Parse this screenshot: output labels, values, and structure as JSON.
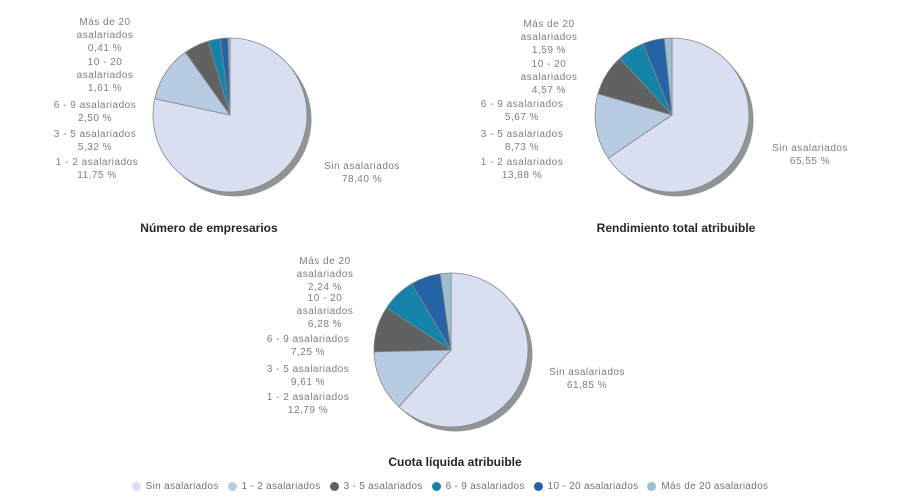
{
  "legend": {
    "items": [
      {
        "label": "Sin asalariados",
        "color": "#d9dff0"
      },
      {
        "label": "1 - 2 asalariados",
        "color": "#b7cbe2"
      },
      {
        "label": "3 - 5 asalariados",
        "color": "#5f6163"
      },
      {
        "label": "6 - 9 asalariados",
        "color": "#1483a8"
      },
      {
        "label": "10 - 20 asalariados",
        "color": "#2663a6"
      },
      {
        "label": "Más de 20 asalariados",
        "color": "#9cc0d2"
      }
    ]
  },
  "chart_data": [
    {
      "type": "pie",
      "title": "Número de empresarios",
      "unit": "%",
      "start_angle_deg": 0,
      "direction": "clockwise",
      "categories": [
        "Sin asalariados",
        "1 - 2 asalariados",
        "3 - 5 asalariados",
        "6 - 9 asalariados",
        "10 - 20 asalariados",
        "Más de 20 asalariados"
      ],
      "values": [
        78.4,
        11.75,
        5.32,
        2.5,
        1.61,
        0.41
      ],
      "legend_position": "bottom-shared"
    },
    {
      "type": "pie",
      "title": "Rendimiento total atribuible",
      "unit": "%",
      "start_angle_deg": 0,
      "direction": "clockwise",
      "categories": [
        "Sin asalariados",
        "1 - 2 asalariados",
        "3 - 5 asalariados",
        "6 - 9 asalariados",
        "10 - 20 asalariados",
        "Más de 20 asalariados"
      ],
      "values": [
        65.55,
        13.88,
        8.73,
        5.67,
        4.57,
        1.59
      ],
      "legend_position": "bottom-shared"
    },
    {
      "type": "pie",
      "title": "Cuota líquida atribuible",
      "unit": "%",
      "start_angle_deg": 0,
      "direction": "clockwise",
      "categories": [
        "Sin asalariados",
        "1 - 2 asalariados",
        "3 - 5 asalariados",
        "6 - 9 asalariados",
        "10 - 20 asalariados",
        "Más de 20 asalariados"
      ],
      "values": [
        61.85,
        12.79,
        9.61,
        7.25,
        6.28,
        2.24
      ],
      "legend_position": "bottom-shared"
    }
  ],
  "charts": [
    {
      "title": "Número de empresarios",
      "callouts": {
        "mas20": "Más de 20\nasalariados\n0,41 %",
        "c1020": "10 - 20\nasalariados\n1,61 %",
        "c69": "6 - 9 asalariados\n2,50 %",
        "c35": "3 - 5 asalariados\n5,32 %",
        "c12": "1 - 2 asalariados\n11,75 %",
        "sin": "Sin asalariados\n78,40 %"
      }
    },
    {
      "title": "Rendimiento total atribuible",
      "callouts": {
        "mas20": "Más de 20\nasalariados\n1,59 %",
        "c1020": "10 - 20\nasalariados\n4,57 %",
        "c69": "6 - 9 asalariados\n5,67 %",
        "c35": "3 - 5 asalariados\n8,73 %",
        "c12": "1 - 2 asalariados\n13,88 %",
        "sin": "Sin asalariados\n65,55 %"
      }
    },
    {
      "title": "Cuota líquida atribuible",
      "callouts": {
        "mas20": "Más de 20\nasalariados\n2,24 %",
        "c1020": "10 - 20\nasalariados\n6,28 %",
        "c69": "6 - 9 asalariados\n7,25 %",
        "c35": "3 - 5 asalariados\n9,61 %",
        "c12": "1 - 2 asalariados\n12,79 %",
        "sin": "Sin asalariados\n61,85 %"
      }
    }
  ],
  "style": {
    "shadow_color": "#919497",
    "slice_border_color": "#848689",
    "label_color": "#7e7e7e",
    "title_color": "#262626"
  }
}
